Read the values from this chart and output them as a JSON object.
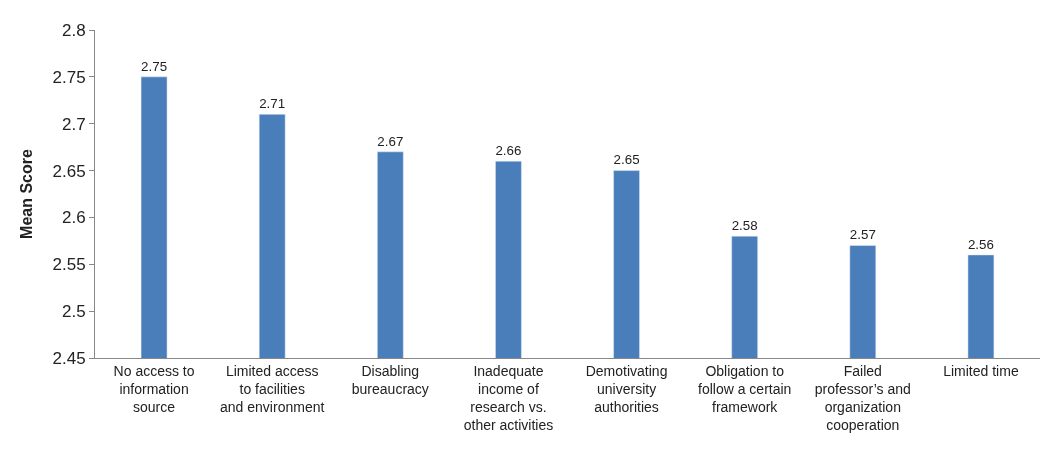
{
  "chart_data": {
    "type": "bar",
    "ylabel": "Mean Score",
    "categories": [
      "No access to information source",
      "Limited access to facilities and environment",
      "Disabling bureaucracy",
      "Inadequate income of research vs. other activities",
      "Demotivating university authorities",
      "Obligation to follow a certain framework",
      "Failed professor’s and organization cooperation",
      "Limited time"
    ],
    "values": [
      2.75,
      2.71,
      2.67,
      2.66,
      2.65,
      2.58,
      2.57,
      2.56
    ],
    "color": "#4a7ebb",
    "ylim": [
      2.45,
      2.8
    ],
    "yticks": [
      2.45,
      2.5,
      2.55,
      2.6,
      2.65,
      2.7,
      2.75,
      2.8
    ],
    "data_labels": true,
    "grid": false
  }
}
